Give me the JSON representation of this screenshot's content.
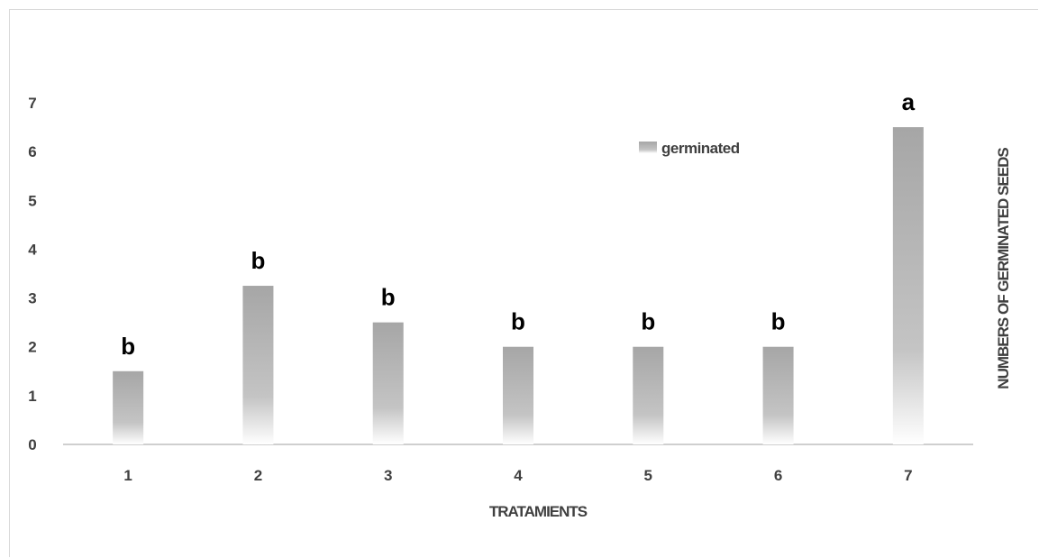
{
  "chart_data": {
    "type": "bar",
    "categories": [
      "1",
      "2",
      "3",
      "4",
      "5",
      "6",
      "7"
    ],
    "series": [
      {
        "name": "germinated",
        "values": [
          1.5,
          3.25,
          2.5,
          2.0,
          2.0,
          2.0,
          6.5
        ],
        "color": "#a6a6a6"
      }
    ],
    "data_labels": [
      "b",
      "b",
      "b",
      "b",
      "b",
      "b",
      "a"
    ],
    "xlabel": "TRATAMIENTS",
    "ylabel": "NUMBERS OF GERMINATED SEEDS",
    "yticks": [
      "0",
      "1",
      "2",
      "3",
      "4",
      "5",
      "6",
      "7"
    ],
    "ylim": [
      0,
      7
    ],
    "grid": false,
    "legend_position": "top-right"
  }
}
